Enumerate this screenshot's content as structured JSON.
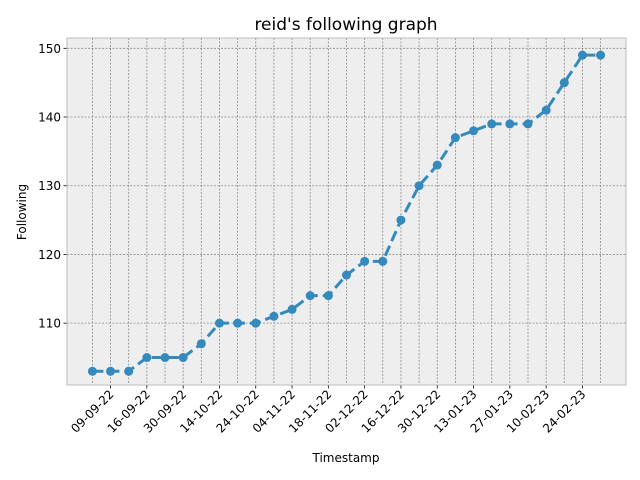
{
  "chart_data": {
    "type": "line",
    "title": "reid's following graph",
    "xlabel": "Timestamp",
    "ylabel": "Following",
    "ylim": [
      101,
      151.5
    ],
    "yticks": [
      110,
      120,
      130,
      140,
      150
    ],
    "xtick_labels": [
      "09-09-22",
      "16-09-22",
      "30-09-22",
      "14-10-22",
      "24-10-22",
      "04-11-22",
      "18-11-22",
      "02-12-22",
      "16-12-22",
      "30-12-22",
      "13-01-23",
      "27-01-23",
      "10-02-23",
      "24-02-23"
    ],
    "grid": true,
    "line_style": "dashed",
    "marker": "circle",
    "colors": {
      "line": "#348abd",
      "plot_background": "#eeeeee",
      "grid": "#8c8c8c",
      "frame": "#bcbcbc"
    },
    "series": [
      {
        "values": [
          103,
          103,
          103,
          105,
          105,
          105,
          107,
          110,
          110,
          110,
          111,
          112,
          114,
          114,
          117,
          119,
          119,
          125,
          130,
          133,
          137,
          138,
          139,
          139,
          139,
          141,
          145,
          149,
          149
        ]
      }
    ]
  }
}
